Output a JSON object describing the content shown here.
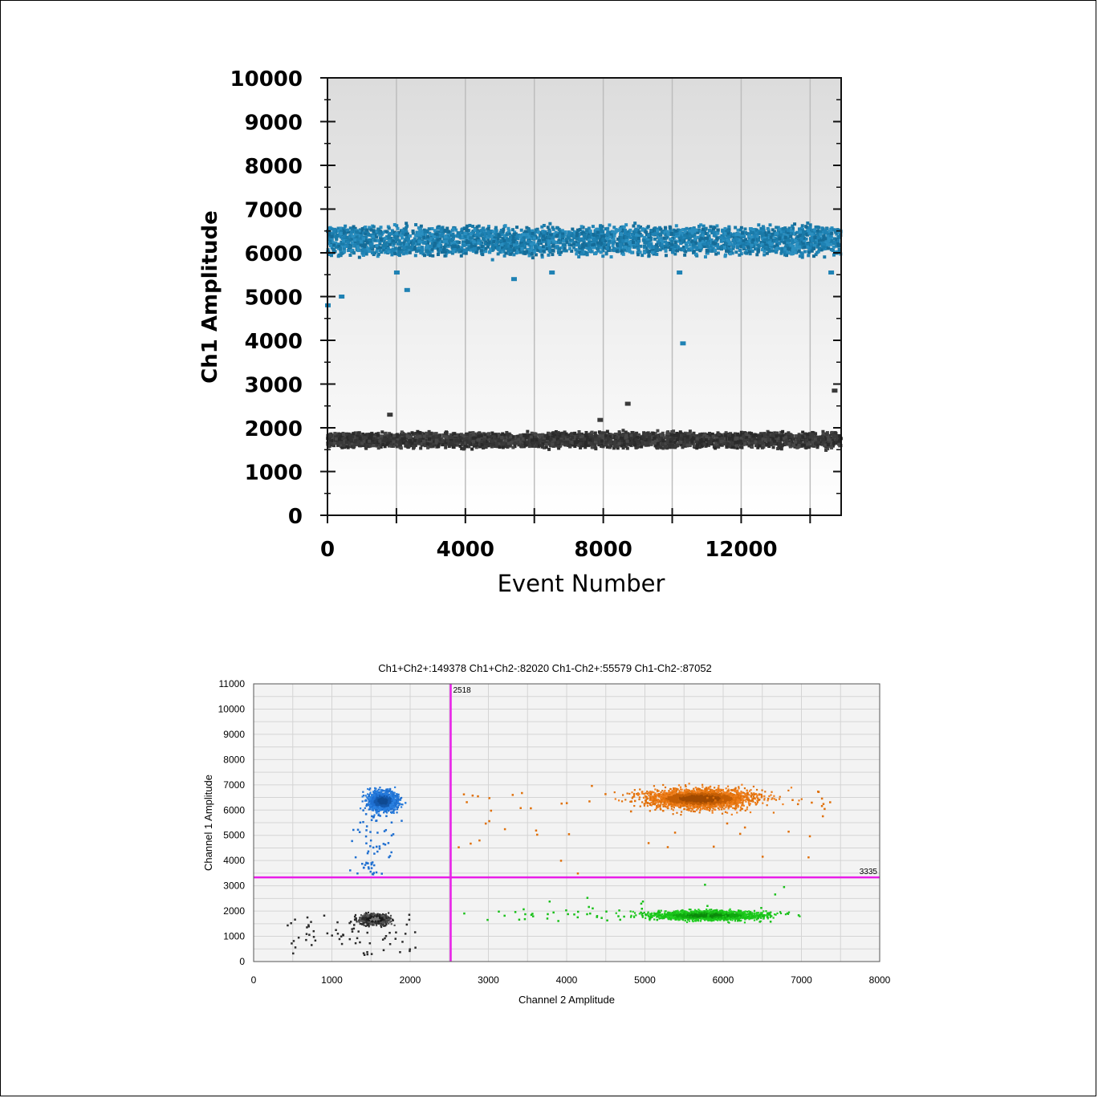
{
  "chart_data": [
    {
      "type": "scatter",
      "title": "",
      "xlabel": "Event Number",
      "ylabel": "Ch1 Amplitude",
      "xlim": [
        0,
        14900
      ],
      "ylim": [
        0,
        10000
      ],
      "xticks": [
        "0",
        "4000",
        "8000",
        "12000"
      ],
      "yticks": [
        "0",
        "1000",
        "2000",
        "3000",
        "4000",
        "5000",
        "6000",
        "7000",
        "8000",
        "9000",
        "10000"
      ],
      "grid": true,
      "series": [
        {
          "color": "#1f82b4",
          "band": {
            "x_range": [
              0,
              14900
            ],
            "y_center": 6280,
            "y_spread": 320
          },
          "outliers": [
            {
              "x": 0,
              "y": 4800
            },
            {
              "x": 400,
              "y": 5000
            },
            {
              "x": 2300,
              "y": 5150
            },
            {
              "x": 2000,
              "y": 5550
            },
            {
              "x": 5400,
              "y": 5400
            },
            {
              "x": 6500,
              "y": 5550
            },
            {
              "x": 10200,
              "y": 5550
            },
            {
              "x": 10300,
              "y": 3930
            },
            {
              "x": 14600,
              "y": 5550
            }
          ]
        },
        {
          "color": "#3a3a3a",
          "band": {
            "x_range": [
              0,
              14900
            ],
            "y_center": 1720,
            "y_spread": 170
          },
          "outliers": [
            {
              "x": 1800,
              "y": 2300
            },
            {
              "x": 7900,
              "y": 2180
            },
            {
              "x": 8700,
              "y": 2550
            },
            {
              "x": 14700,
              "y": 2850
            }
          ]
        }
      ]
    },
    {
      "type": "scatter",
      "title": "Ch1+Ch2+:149378  Ch1+Ch2-:82020  Ch1-Ch2+:55579  Ch1-Ch2-:87052",
      "xlabel": "Channel 2 Amplitude",
      "ylabel": "Channel 1 Amplitude",
      "xlim": [
        0,
        8000
      ],
      "ylim": [
        0,
        11000
      ],
      "xticks": [
        "0",
        "1000",
        "2000",
        "3000",
        "4000",
        "5000",
        "6000",
        "7000",
        "8000"
      ],
      "yticks": [
        "0",
        "1000",
        "2000",
        "3000",
        "4000",
        "5000",
        "6000",
        "7000",
        "8000",
        "9000",
        "10000",
        "11000"
      ],
      "grid": true,
      "thresholds": {
        "x": 2518,
        "y": 3335,
        "x_label": "2518",
        "y_label": "3335",
        "color": "#e81ee8"
      },
      "clusters": [
        {
          "quadrant": "Ch1+Ch2-",
          "color": "#1f6fd0",
          "center": [
            1650,
            6350
          ],
          "spread": [
            160,
            320
          ]
        },
        {
          "quadrant": "Ch1+Ch2+",
          "color": "#e0700a",
          "center": [
            5700,
            6450
          ],
          "spread": [
            600,
            330
          ]
        },
        {
          "quadrant": "Ch1-Ch2+",
          "color": "#19c019",
          "center": [
            5800,
            1830
          ],
          "spread": [
            620,
            150
          ]
        },
        {
          "quadrant": "Ch1-Ch2-",
          "color": "#2b2b2b",
          "center": [
            1550,
            1680
          ],
          "spread": [
            150,
            170
          ]
        }
      ]
    }
  ]
}
